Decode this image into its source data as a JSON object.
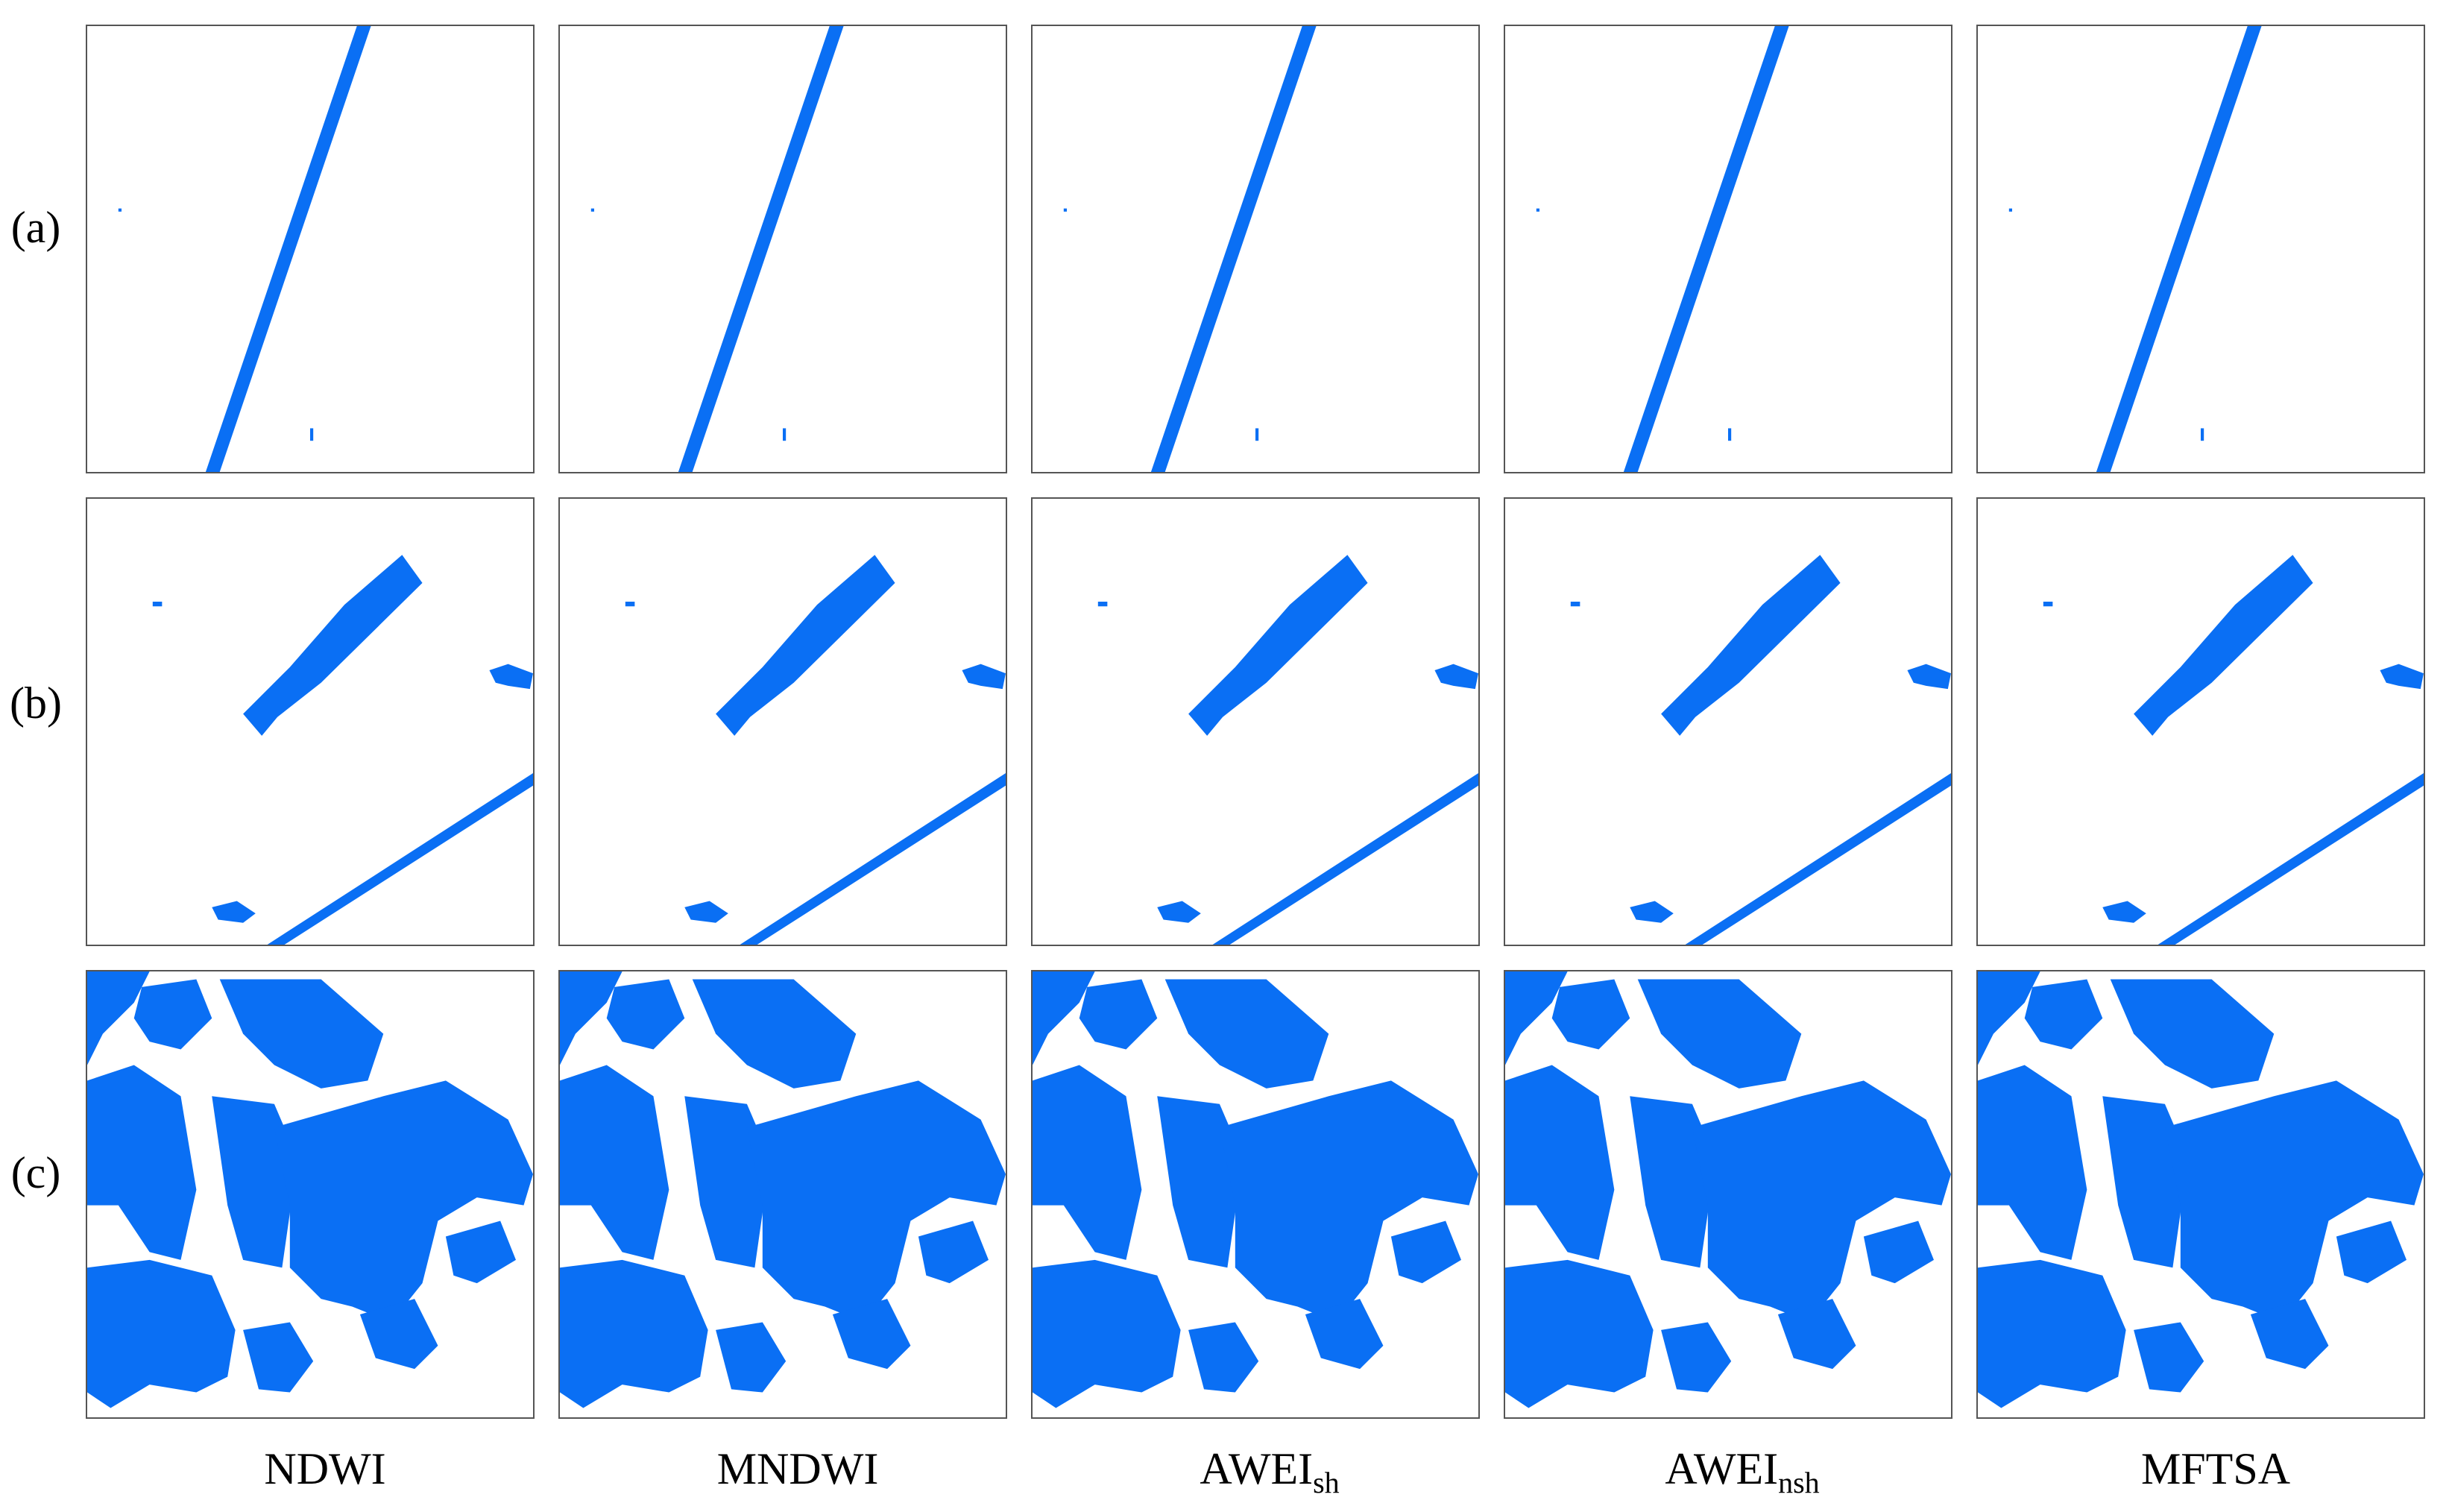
{
  "row_labels": [
    "(a)",
    "(b)",
    "(c)"
  ],
  "column_labels": [
    {
      "main": "NDWI"
    },
    {
      "main": "MNDWI"
    },
    {
      "main": "AWEI",
      "sub": "sh"
    },
    {
      "main": "AWEI",
      "sub": "nsh"
    },
    {
      "main": "MFTSA"
    }
  ]
}
